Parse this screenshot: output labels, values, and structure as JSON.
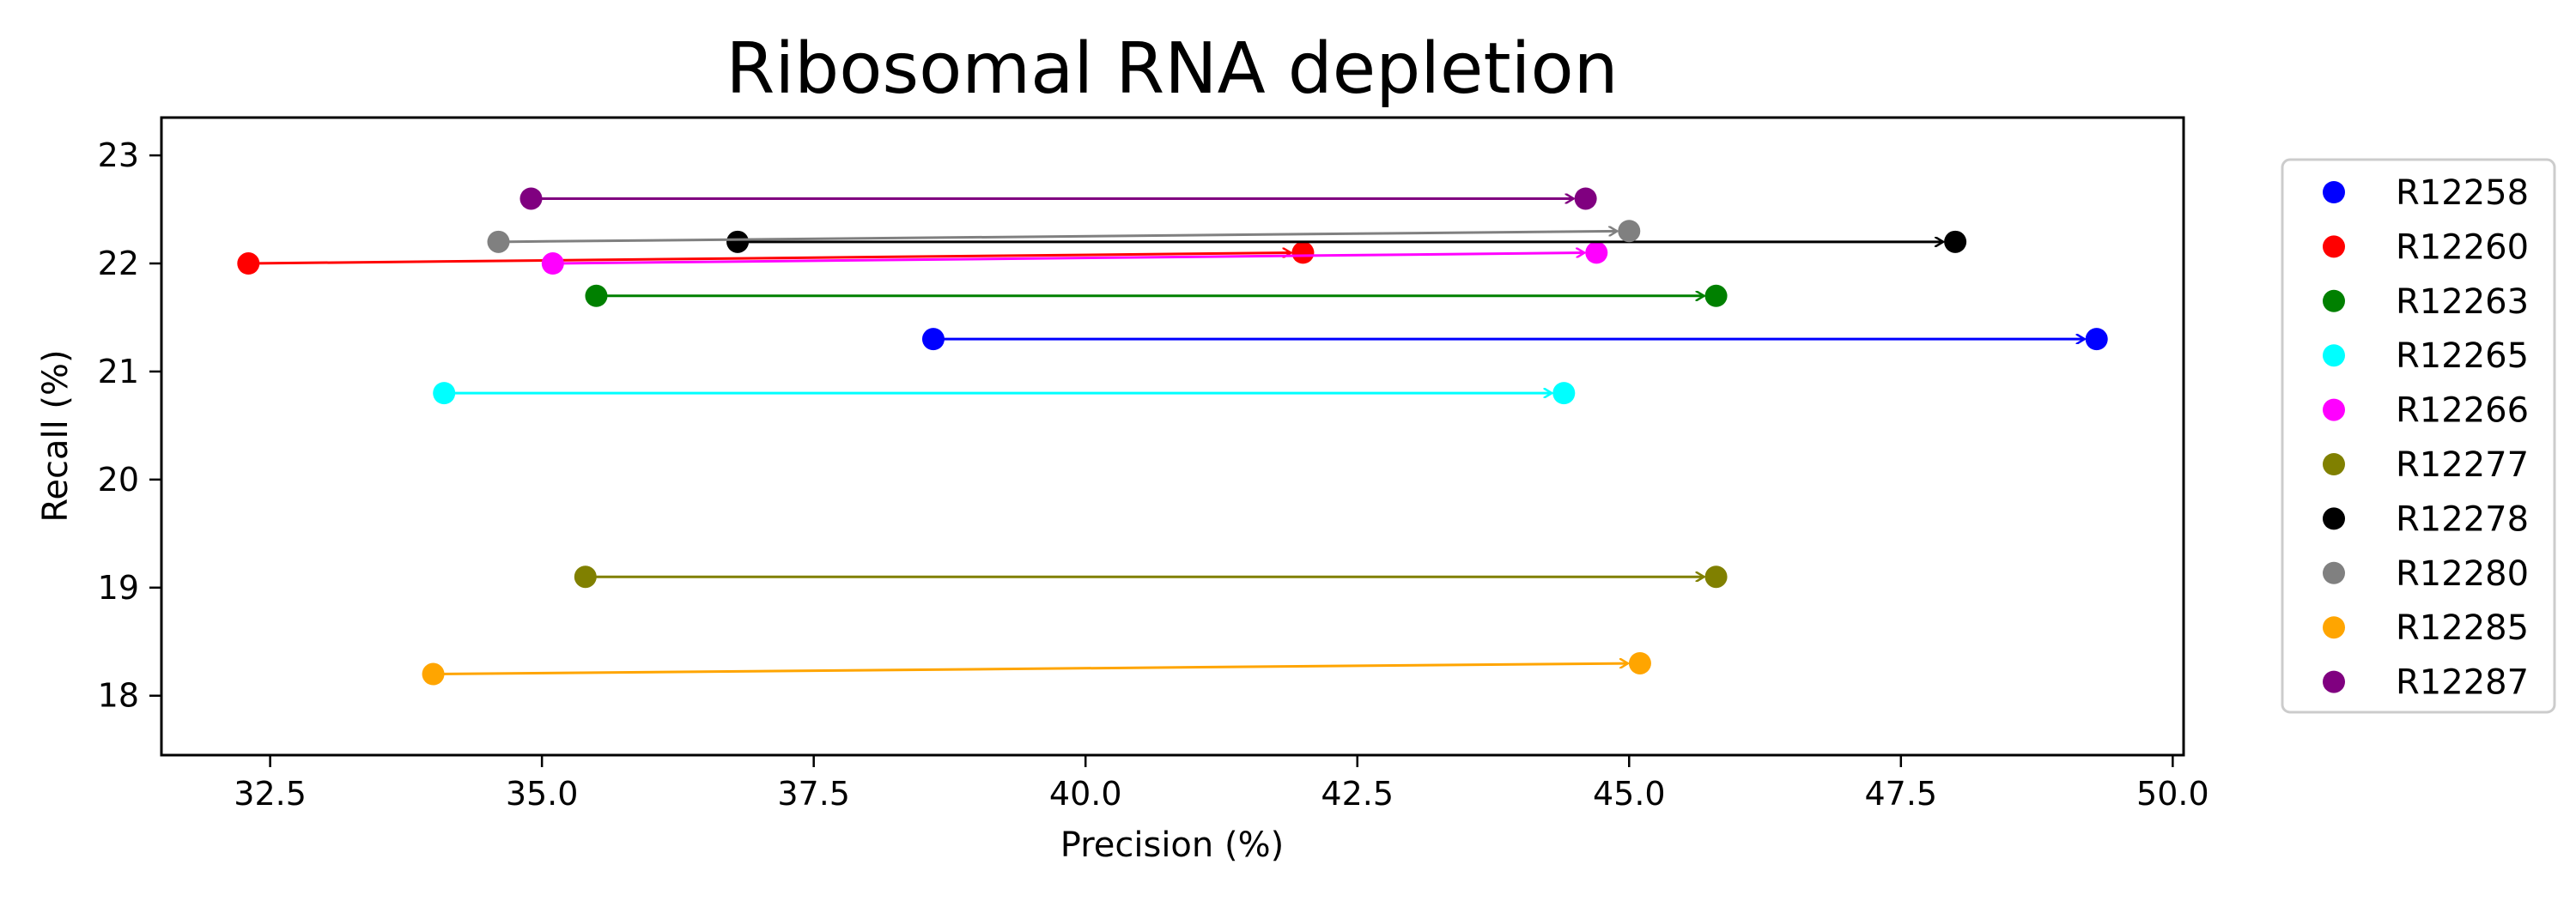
{
  "chart_data": {
    "type": "scatter",
    "title": "Ribosomal RNA depletion",
    "xlabel": "Precision (%)",
    "ylabel": "Recall (%)",
    "xlim": [
      31.5,
      50.1
    ],
    "ylim": [
      17.45,
      23.35
    ],
    "xticks": [
      32.5,
      35.0,
      37.5,
      40.0,
      42.5,
      45.0,
      47.5,
      50.0
    ],
    "xtick_labels": [
      "32.5",
      "35.0",
      "37.5",
      "40.0",
      "42.5",
      "45.0",
      "47.5",
      "50.0"
    ],
    "yticks": [
      18,
      19,
      20,
      21,
      22,
      23
    ],
    "ytick_labels": [
      "18",
      "19",
      "20",
      "21",
      "22",
      "23"
    ],
    "grid": false,
    "legend_position": "outside-right",
    "series": [
      {
        "name": "R12258",
        "color": "#0000ff",
        "from": [
          38.6,
          21.3
        ],
        "to": [
          49.3,
          21.3
        ]
      },
      {
        "name": "R12260",
        "color": "#ff0000",
        "from": [
          32.3,
          22.0
        ],
        "to": [
          42.0,
          22.1
        ]
      },
      {
        "name": "R12263",
        "color": "#008000",
        "from": [
          35.5,
          21.7
        ],
        "to": [
          45.8,
          21.7
        ]
      },
      {
        "name": "R12265",
        "color": "#00ffff",
        "from": [
          34.1,
          20.8
        ],
        "to": [
          44.4,
          20.8
        ]
      },
      {
        "name": "R12266",
        "color": "#ff00ff",
        "from": [
          35.1,
          22.0
        ],
        "to": [
          44.7,
          22.1
        ]
      },
      {
        "name": "R12277",
        "color": "#808000",
        "from": [
          35.4,
          19.1
        ],
        "to": [
          45.8,
          19.1
        ]
      },
      {
        "name": "R12278",
        "color": "#000000",
        "from": [
          36.8,
          22.2
        ],
        "to": [
          48.0,
          22.2
        ]
      },
      {
        "name": "R12280",
        "color": "#808080",
        "from": [
          34.6,
          22.2
        ],
        "to": [
          45.0,
          22.3
        ]
      },
      {
        "name": "R12285",
        "color": "#ffa500",
        "from": [
          34.0,
          18.2
        ],
        "to": [
          45.1,
          18.3
        ]
      },
      {
        "name": "R12287",
        "color": "#800080",
        "from": [
          34.9,
          22.6
        ],
        "to": [
          44.6,
          22.6
        ]
      }
    ]
  }
}
